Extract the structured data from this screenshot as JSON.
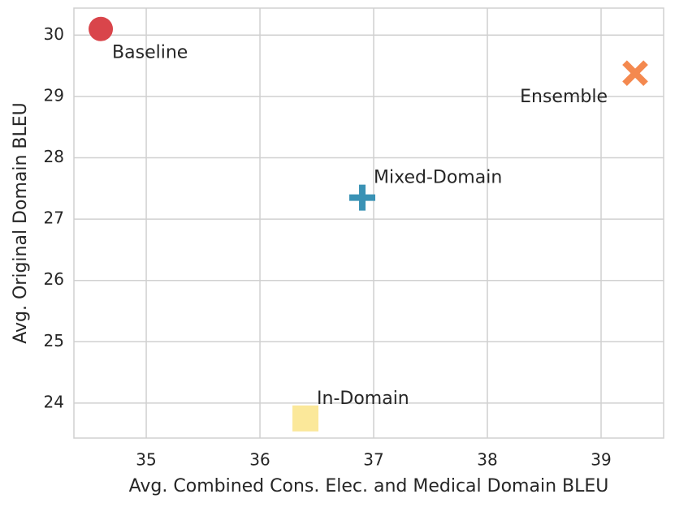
{
  "chart_data": {
    "type": "scatter",
    "x_label": "Avg. Combined Cons. Elec. and Medical Domain BLEU",
    "y_label": "Avg. Original Domain BLEU",
    "xlim": [
      34.364,
      39.55
    ],
    "ylim": [
      23.43,
      30.44
    ],
    "xticks": [
      35,
      36,
      37,
      38,
      39
    ],
    "yticks": [
      24,
      25,
      26,
      27,
      28,
      29,
      30
    ],
    "grid": true,
    "series": [
      {
        "name": "Baseline",
        "color": "#d9454b",
        "marker": "circle",
        "x": [
          34.6
        ],
        "values": [
          30.1
        ]
      },
      {
        "name": "Ensemble",
        "color": "#f4894f",
        "marker": "x",
        "x": [
          39.3
        ],
        "values": [
          29.38
        ]
      },
      {
        "name": "Mixed-Domain",
        "color": "#3a92b5",
        "marker": "plus",
        "x": [
          36.9
        ],
        "values": [
          27.35
        ]
      },
      {
        "name": "In-Domain",
        "color": "#fbe89a",
        "marker": "square",
        "x": [
          36.4
        ],
        "values": [
          23.75
        ]
      }
    ]
  }
}
